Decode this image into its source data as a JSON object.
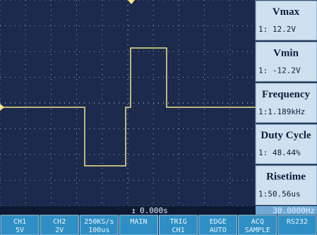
{
  "measurements": [
    {
      "title": "Vmax",
      "reading": "1:  12.2V"
    },
    {
      "title": "Vmin",
      "reading": "1: -12.2V"
    },
    {
      "title": "Frequency",
      "reading": "1:1.189kHz"
    },
    {
      "title": "Duty Cycle",
      "reading": "1: 48.44%"
    },
    {
      "title": "Risetime",
      "reading": "1:50.56us"
    }
  ],
  "status": {
    "time": "0.000s",
    "trigger_freq": "30.0000Hz"
  },
  "buttons": [
    {
      "top": "CH1",
      "bottom": "5V"
    },
    {
      "top": "CH2",
      "bottom": "2V"
    },
    {
      "top": "250KS/s",
      "bottom": "100us"
    },
    {
      "top": "MAIN",
      "bottom": ""
    },
    {
      "top": "TRIG",
      "bottom": "CH1"
    },
    {
      "top": "EDGE",
      "bottom": "AUTO"
    },
    {
      "top": "ACQ",
      "bottom": "SAMPLE"
    },
    {
      "top": "RS232",
      "bottom": ""
    }
  ]
}
